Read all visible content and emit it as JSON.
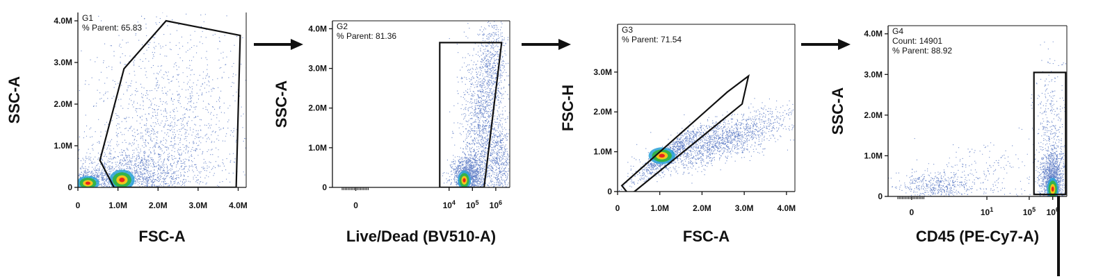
{
  "colors": {
    "points": "#3a5fb8",
    "hot": "#e8251c",
    "warm": "#f2c51a",
    "mid": "#33b34a",
    "cool": "#28a0d8",
    "gate": "#111111"
  },
  "chart_data": [
    {
      "type": "scatter",
      "gate": {
        "name": "G1",
        "stats": [
          {
            "label": "% Parent",
            "value": "65.83"
          }
        ]
      },
      "xlabel": "FSC-A",
      "ylabel": "SSC-A",
      "xscale": "linear",
      "yscale": "linear",
      "xlim": [
        0,
        4200000
      ],
      "ylim": [
        0,
        4200000
      ],
      "xticks": [
        {
          "v": 0,
          "label": "0"
        },
        {
          "v": 1000000,
          "label": "1.0M"
        },
        {
          "v": 2000000,
          "label": "2.0M"
        },
        {
          "v": 3000000,
          "label": "3.0M"
        },
        {
          "v": 4000000,
          "label": "4.0M"
        }
      ],
      "yticks": [
        {
          "v": 0,
          "label": "0"
        },
        {
          "v": 1000000,
          "label": "1.0M"
        },
        {
          "v": 2000000,
          "label": "2.0M"
        },
        {
          "v": 3000000,
          "label": "3.0M"
        },
        {
          "v": 4000000,
          "label": "4.0M"
        }
      ],
      "gate_polygon": [
        [
          900000,
          0
        ],
        [
          550000,
          650000
        ],
        [
          1150000,
          2850000
        ],
        [
          2200000,
          4000000
        ],
        [
          4050000,
          3650000
        ],
        [
          3950000,
          0
        ]
      ],
      "clusters": [
        {
          "x": 1200000,
          "y": 200000,
          "sx": 800000,
          "sy": 350000,
          "n": 1500
        },
        {
          "x": 2200000,
          "y": 900000,
          "sx": 1000000,
          "sy": 900000,
          "n": 1200
        },
        {
          "x": 2200000,
          "y": 2700000,
          "sx": 1100000,
          "sy": 1000000,
          "n": 500
        },
        {
          "x": 400000,
          "y": 200000,
          "sx": 250000,
          "sy": 150000,
          "n": 250
        }
      ],
      "hotspots": [
        {
          "x": 1100000,
          "y": 180000,
          "sx": 90000,
          "sy": 70000
        },
        {
          "x": 250000,
          "y": 100000,
          "sx": 80000,
          "sy": 50000
        }
      ]
    },
    {
      "type": "scatter",
      "gate": {
        "name": "G2",
        "stats": [
          {
            "label": "% Parent",
            "value": "81.36"
          }
        ]
      },
      "xlabel": "Live/Dead (BV510-A)",
      "ylabel": "SSC-A",
      "xscale": "biexponential",
      "yscale": "linear",
      "xlim": [
        -1.0,
        6.6
      ],
      "ylim": [
        0,
        4200000
      ],
      "xticks": [
        {
          "v": 0,
          "label": "0"
        },
        {
          "v": 4,
          "label": "10",
          "sup": "4"
        },
        {
          "v": 5,
          "label": "10",
          "sup": "5"
        },
        {
          "v": 6,
          "label": "10",
          "sup": "6"
        }
      ],
      "yticks": [
        {
          "v": 0,
          "label": "0"
        },
        {
          "v": 1000000,
          "label": "1.0M"
        },
        {
          "v": 2000000,
          "label": "2.0M"
        },
        {
          "v": 3000000,
          "label": "3.0M"
        },
        {
          "v": 4000000,
          "label": "4.0M"
        }
      ],
      "gate_polygon": [
        [
          3.6,
          0
        ],
        [
          3.6,
          3650000
        ],
        [
          6.25,
          3650000
        ],
        [
          5.5,
          0
        ]
      ],
      "clusters": [
        {
          "x": 4.8,
          "y": 300000,
          "sx": 0.35,
          "sy": 250000,
          "n": 1300
        },
        {
          "x": 5.45,
          "y": 1600000,
          "sx": 0.45,
          "sy": 1000000,
          "n": 1400
        },
        {
          "x": 5.9,
          "y": 3200000,
          "sx": 0.3,
          "sy": 600000,
          "n": 450
        },
        {
          "x": 6.2,
          "y": 600000,
          "sx": 0.25,
          "sy": 500000,
          "n": 400
        }
      ],
      "hotspots": [
        {
          "x": 4.65,
          "y": 180000,
          "sx": 0.08,
          "sy": 70000
        }
      ]
    },
    {
      "type": "scatter",
      "gate": {
        "name": "G3",
        "stats": [
          {
            "label": "% Parent",
            "value": "71.54"
          }
        ]
      },
      "xlabel": "FSC-A",
      "ylabel": "FSC-H",
      "xscale": "linear",
      "yscale": "linear",
      "xlim": [
        0,
        4200000
      ],
      "ylim": [
        0,
        4200000
      ],
      "xticks": [
        {
          "v": 0,
          "label": "0"
        },
        {
          "v": 1000000,
          "label": "1.0M"
        },
        {
          "v": 2000000,
          "label": "2.0M"
        },
        {
          "v": 3000000,
          "label": "3.0M"
        },
        {
          "v": 4000000,
          "label": "4.0M"
        }
      ],
      "yticks": [
        {
          "v": 0,
          "label": "0"
        },
        {
          "v": 1000000,
          "label": "1.0M"
        },
        {
          "v": 2000000,
          "label": "2.0M"
        },
        {
          "v": 3000000,
          "label": "3.0M"
        }
      ],
      "gate_polygon": [
        [
          100000,
          150000
        ],
        [
          2600000,
          2500000
        ],
        [
          3100000,
          2900000
        ],
        [
          2950000,
          2200000
        ],
        [
          400000,
          0
        ],
        [
          250000,
          -50000
        ]
      ],
      "clusters": [
        {
          "x": 2500000,
          "y": 1300000,
          "sx": 800000,
          "sy": 250000,
          "n": 1600,
          "slope": 0.35
        },
        {
          "x": 1200000,
          "y": 950000,
          "sx": 400000,
          "sy": 120000,
          "n": 700,
          "slope": 0.8
        }
      ],
      "hotspots": [
        {
          "x": 1050000,
          "y": 900000,
          "sx": 90000,
          "sy": 60000
        }
      ]
    },
    {
      "type": "scatter",
      "gate": {
        "name": "G4",
        "stats": [
          {
            "label": "Count",
            "value": "14901"
          },
          {
            "label": "% Parent",
            "value": "88.92"
          }
        ]
      },
      "xlabel": "CD45 (PE-Cy7-A)",
      "ylabel": "SSC-A",
      "xscale": "biexponential",
      "yscale": "linear",
      "xlim": [
        -1.0,
        6.6
      ],
      "ylim": [
        0,
        4200000
      ],
      "xticks": [
        {
          "v": 0,
          "label": "0"
        },
        {
          "v": 3.2,
          "label": "10",
          "sup": "1"
        },
        {
          "v": 5,
          "label": "10",
          "sup": "5"
        },
        {
          "v": 6,
          "label": "10",
          "sup": "6"
        }
      ],
      "yticks": [
        {
          "v": 0,
          "label": "0"
        },
        {
          "v": 1000000,
          "label": "1.0M"
        },
        {
          "v": 2000000,
          "label": "2.0M"
        },
        {
          "v": 3000000,
          "label": "3.0M"
        },
        {
          "v": 4000000,
          "label": "4.0M"
        }
      ],
      "gate_polygon": [
        [
          5.2,
          50000
        ],
        [
          5.2,
          3050000
        ],
        [
          6.55,
          3050000
        ],
        [
          6.55,
          50000
        ]
      ],
      "clusters": [
        {
          "x": 6.0,
          "y": 350000,
          "sx": 0.25,
          "sy": 400000,
          "n": 1500
        },
        {
          "x": 5.9,
          "y": 1600000,
          "sx": 0.35,
          "sy": 800000,
          "n": 350
        },
        {
          "x": 1.0,
          "y": 250000,
          "sx": 0.8,
          "sy": 200000,
          "n": 500
        },
        {
          "x": 3.2,
          "y": 400000,
          "sx": 1.2,
          "sy": 500000,
          "n": 250
        }
      ],
      "hotspots": [
        {
          "x": 6.0,
          "y": 180000,
          "sx": 0.07,
          "sy": 80000
        }
      ]
    }
  ]
}
